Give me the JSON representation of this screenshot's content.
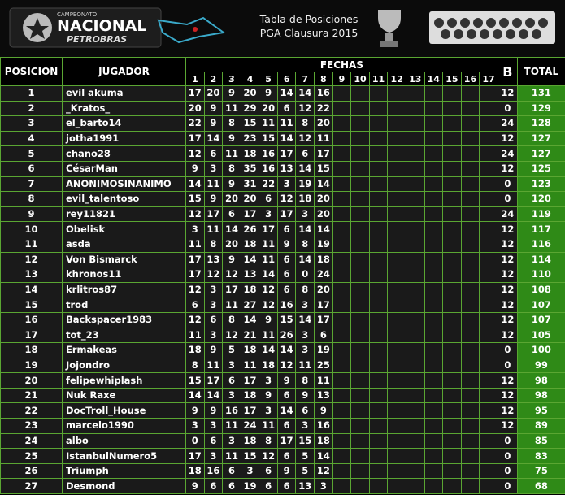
{
  "header": {
    "logo": [
      "CAMPEONATO",
      "NACIONAL",
      "PETROBRAS"
    ],
    "title": "Tabla de Posiciones",
    "subtitle": "PGA Clausura 2015"
  },
  "table": {
    "columns": {
      "pos": "POSICION",
      "player": "JUGADOR",
      "fechas": "FECHAS",
      "bonus": "B",
      "total": "TOTAL"
    },
    "fechas": [
      1,
      2,
      3,
      4,
      5,
      6,
      7,
      8,
      9,
      10,
      11,
      12,
      13,
      14,
      15,
      16,
      17
    ],
    "rows": [
      {
        "pos": 1,
        "player": "evil akuma",
        "scores": [
          17,
          20,
          9,
          20,
          9,
          14,
          14,
          16
        ],
        "bonus": 12,
        "total": 131
      },
      {
        "pos": 2,
        "player": "_Kratos_",
        "scores": [
          20,
          9,
          11,
          29,
          20,
          6,
          12,
          22
        ],
        "bonus": 0,
        "total": 129
      },
      {
        "pos": 3,
        "player": "el_barto14",
        "scores": [
          22,
          9,
          8,
          15,
          11,
          11,
          8,
          20
        ],
        "bonus": 24,
        "total": 128
      },
      {
        "pos": 4,
        "player": "jotha1991",
        "scores": [
          17,
          14,
          9,
          23,
          15,
          14,
          12,
          11
        ],
        "bonus": 12,
        "total": 127
      },
      {
        "pos": 5,
        "player": "chano28",
        "scores": [
          12,
          6,
          11,
          18,
          16,
          17,
          6,
          17
        ],
        "bonus": 24,
        "total": 127
      },
      {
        "pos": 6,
        "player": "CésarMan",
        "scores": [
          9,
          3,
          8,
          35,
          16,
          13,
          14,
          15
        ],
        "bonus": 12,
        "total": 125
      },
      {
        "pos": 7,
        "player": "ANONIMOSINANIMO",
        "scores": [
          14,
          11,
          9,
          31,
          22,
          3,
          19,
          14
        ],
        "bonus": 0,
        "total": 123
      },
      {
        "pos": 8,
        "player": "evil_talentoso",
        "scores": [
          15,
          9,
          20,
          20,
          6,
          12,
          18,
          20
        ],
        "bonus": 0,
        "total": 120
      },
      {
        "pos": 9,
        "player": "rey11821",
        "scores": [
          12,
          17,
          6,
          17,
          3,
          17,
          3,
          20
        ],
        "bonus": 24,
        "total": 119
      },
      {
        "pos": 10,
        "player": "Obelisk",
        "scores": [
          3,
          11,
          14,
          26,
          17,
          6,
          14,
          14
        ],
        "bonus": 12,
        "total": 117
      },
      {
        "pos": 11,
        "player": "asda",
        "scores": [
          11,
          8,
          20,
          18,
          11,
          9,
          8,
          19
        ],
        "bonus": 12,
        "total": 116
      },
      {
        "pos": 12,
        "player": "Von Bismarck",
        "scores": [
          17,
          13,
          9,
          14,
          11,
          6,
          14,
          18
        ],
        "bonus": 12,
        "total": 114
      },
      {
        "pos": 13,
        "player": "khronos11",
        "scores": [
          17,
          12,
          12,
          13,
          14,
          6,
          0,
          24
        ],
        "bonus": 12,
        "total": 110
      },
      {
        "pos": 14,
        "player": "krlitros87",
        "scores": [
          12,
          3,
          17,
          18,
          12,
          6,
          8,
          20
        ],
        "bonus": 12,
        "total": 108
      },
      {
        "pos": 15,
        "player": "trod",
        "scores": [
          6,
          3,
          11,
          27,
          12,
          16,
          3,
          17
        ],
        "bonus": 12,
        "total": 107
      },
      {
        "pos": 16,
        "player": "Backspacer1983",
        "scores": [
          12,
          6,
          8,
          14,
          9,
          15,
          14,
          17
        ],
        "bonus": 12,
        "total": 107
      },
      {
        "pos": 17,
        "player": "tot_23",
        "scores": [
          11,
          3,
          12,
          21,
          11,
          26,
          3,
          6
        ],
        "bonus": 12,
        "total": 105
      },
      {
        "pos": 18,
        "player": "Ermakeas",
        "scores": [
          18,
          9,
          5,
          18,
          14,
          14,
          3,
          19
        ],
        "bonus": 0,
        "total": 100
      },
      {
        "pos": 19,
        "player": "Jojondro",
        "scores": [
          8,
          11,
          3,
          11,
          18,
          12,
          11,
          25
        ],
        "bonus": 0,
        "total": 99
      },
      {
        "pos": 20,
        "player": "felipewhiplash",
        "scores": [
          15,
          17,
          6,
          17,
          3,
          9,
          8,
          11
        ],
        "bonus": 12,
        "total": 98
      },
      {
        "pos": 21,
        "player": "Nuk Raxe",
        "scores": [
          14,
          14,
          3,
          18,
          9,
          6,
          9,
          13
        ],
        "bonus": 12,
        "total": 98
      },
      {
        "pos": 22,
        "player": "DocTroll_House",
        "scores": [
          9,
          9,
          16,
          17,
          3,
          14,
          6,
          9
        ],
        "bonus": 12,
        "total": 95
      },
      {
        "pos": 23,
        "player": "marcelo1990",
        "scores": [
          3,
          3,
          11,
          24,
          11,
          6,
          3,
          16
        ],
        "bonus": 12,
        "total": 89
      },
      {
        "pos": 24,
        "player": "albo",
        "scores": [
          0,
          6,
          3,
          18,
          8,
          17,
          15,
          18
        ],
        "bonus": 0,
        "total": 85
      },
      {
        "pos": 25,
        "player": "IstanbulNumero5",
        "scores": [
          17,
          3,
          11,
          15,
          12,
          6,
          5,
          14
        ],
        "bonus": 0,
        "total": 83
      },
      {
        "pos": 26,
        "player": "Triumph",
        "scores": [
          18,
          16,
          6,
          3,
          6,
          9,
          5,
          12
        ],
        "bonus": 0,
        "total": 75
      },
      {
        "pos": 27,
        "player": "Desmond",
        "scores": [
          9,
          6,
          6,
          19,
          6,
          6,
          13,
          3
        ],
        "bonus": 0,
        "total": 68
      }
    ]
  }
}
